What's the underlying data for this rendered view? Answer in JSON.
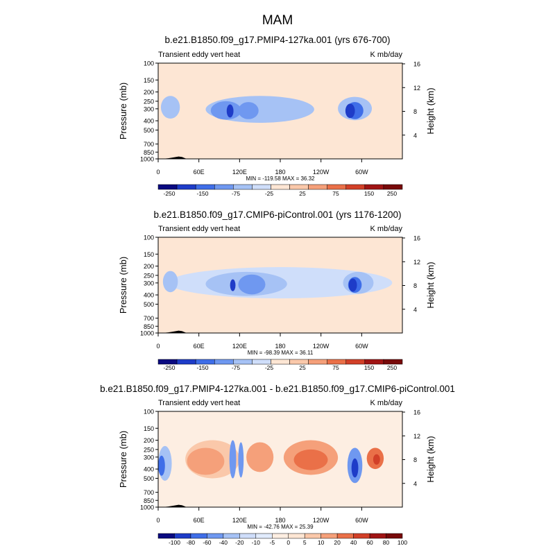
{
  "figure": {
    "title": "MAM"
  },
  "palettes": {
    "abs": [
      "#0a0a80",
      "#1e3cc8",
      "#3f6ee8",
      "#6f98f0",
      "#a6c2f5",
      "#cfdefa",
      "#fde6d4",
      "#fac8aa",
      "#f5a07a",
      "#ea7048",
      "#d24028",
      "#a01414",
      "#780a0a"
    ],
    "diff": [
      "#0a0a80",
      "#1e3cc8",
      "#3f6ee8",
      "#6f98f0",
      "#a6c2f5",
      "#cfdefa",
      "#e1ebfc",
      "#fdeee2",
      "#fde6d4",
      "#fac8aa",
      "#f5a07a",
      "#ea7048",
      "#d24028",
      "#a01414",
      "#780a0a"
    ]
  },
  "chart_data": [
    {
      "type": "heatmap",
      "title": "b.e21.B1850.f09_g17.PMIP4-127ka.001 (yrs 676-700)",
      "left_label": "Transient eddy vert heat",
      "units": "K mb/day",
      "ylabel": "Pressure (mb)",
      "y2label": "Height (km)",
      "xticks": [
        "0",
        "60E",
        "120E",
        "180",
        "120W",
        "60W"
      ],
      "yticks": [
        "100",
        "150",
        "200",
        "250",
        "300",
        "400",
        "500",
        "700",
        "850",
        "1000"
      ],
      "y2ticks": [
        "16",
        "12",
        "8",
        "4"
      ],
      "stats": "MIN = -119.58  MAX =  36.32",
      "colorbar_levels": [
        "-250",
        "-150",
        "-75",
        "-25",
        "25",
        "75",
        "150",
        "250"
      ],
      "palette": "abs",
      "x_range": [
        0,
        360
      ],
      "p_range": [
        1000,
        100
      ],
      "background_level": 6,
      "blobs": [
        {
          "lon": 150,
          "p": 320,
          "wlon": 160,
          "wp": 200,
          "level": 4
        },
        {
          "lon": 18,
          "p": 300,
          "wlon": 28,
          "wp": 160,
          "level": 4
        },
        {
          "lon": 290,
          "p": 310,
          "wlon": 50,
          "wp": 170,
          "level": 4
        },
        {
          "lon": 100,
          "p": 320,
          "wlon": 45,
          "wp": 140,
          "level": 3
        },
        {
          "lon": 133,
          "p": 320,
          "wlon": 30,
          "wp": 130,
          "level": 3
        },
        {
          "lon": 290,
          "p": 320,
          "wlon": 25,
          "wp": 130,
          "level": 2
        },
        {
          "lon": 106,
          "p": 320,
          "wlon": 10,
          "wp": 100,
          "level": 1
        },
        {
          "lon": 283,
          "p": 320,
          "wlon": 14,
          "wp": 110,
          "level": 1
        }
      ],
      "topography": [
        [
          5,
          1000
        ],
        [
          15,
          985
        ],
        [
          25,
          960
        ],
        [
          30,
          945
        ],
        [
          35,
          955
        ],
        [
          42,
          1000
        ]
      ]
    },
    {
      "type": "heatmap",
      "title": "b.e21.B1850.f09_g17.CMIP6-piControl.001 (yrs 1176-1200)",
      "left_label": "Transient eddy vert heat",
      "units": "K mb/day",
      "ylabel": "Pressure (mb)",
      "y2label": "Height (km)",
      "xticks": [
        "0",
        "60E",
        "120E",
        "180",
        "120W",
        "60W"
      ],
      "yticks": [
        "100",
        "150",
        "200",
        "250",
        "300",
        "400",
        "500",
        "700",
        "850",
        "1000"
      ],
      "y2ticks": [
        "16",
        "12",
        "8",
        "4"
      ],
      "stats": "MIN = -98.39  MAX =  36.11",
      "colorbar_levels": [
        "-250",
        "-150",
        "-75",
        "-25",
        "25",
        "75",
        "150",
        "250"
      ],
      "palette": "abs",
      "x_range": [
        0,
        360
      ],
      "p_range": [
        1000,
        100
      ],
      "background_level": 6,
      "blobs": [
        {
          "lon": 180,
          "p": 320,
          "wlon": 330,
          "wp": 230,
          "level": 5
        },
        {
          "lon": 130,
          "p": 320,
          "wlon": 120,
          "wp": 180,
          "level": 4
        },
        {
          "lon": 18,
          "p": 300,
          "wlon": 22,
          "wp": 150,
          "level": 4
        },
        {
          "lon": 295,
          "p": 310,
          "wlon": 45,
          "wp": 160,
          "level": 4
        },
        {
          "lon": 138,
          "p": 320,
          "wlon": 40,
          "wp": 150,
          "level": 3
        },
        {
          "lon": 290,
          "p": 320,
          "wlon": 20,
          "wp": 120,
          "level": 2
        },
        {
          "lon": 110,
          "p": 320,
          "wlon": 8,
          "wp": 90,
          "level": 1
        },
        {
          "lon": 287,
          "p": 320,
          "wlon": 12,
          "wp": 100,
          "level": 1
        }
      ],
      "topography": [
        [
          5,
          1000
        ],
        [
          15,
          985
        ],
        [
          25,
          960
        ],
        [
          30,
          945
        ],
        [
          35,
          955
        ],
        [
          42,
          1000
        ]
      ]
    },
    {
      "type": "heatmap",
      "title": "b.e21.B1850.f09_g17.PMIP4-127ka.001 - b.e21.B1850.f09_g17.CMIP6-piControl.001",
      "left_label": "Transient eddy vert heat",
      "units": "K mb/day",
      "ylabel": "Pressure (mb)",
      "y2label": "Height (km)",
      "xticks": [
        "0",
        "60E",
        "120E",
        "180",
        "120W",
        "60W"
      ],
      "yticks": [
        "100",
        "150",
        "200",
        "250",
        "300",
        "400",
        "500",
        "700",
        "850",
        "1000"
      ],
      "y2ticks": [
        "16",
        "12",
        "8",
        "4"
      ],
      "stats": "MIN = -42.76  MAX =  25.39",
      "colorbar_levels": [
        "-100",
        "-80",
        "-60",
        "-40",
        "-20",
        "-10",
        "-5",
        "0",
        "5",
        "10",
        "20",
        "40",
        "60",
        "80",
        "100"
      ],
      "palette": "diff",
      "x_range": [
        0,
        360
      ],
      "p_range": [
        1000,
        100
      ],
      "background_level": 7,
      "blobs": [
        {
          "lon": 80,
          "p": 350,
          "wlon": 80,
          "wp": 300,
          "level": 9
        },
        {
          "lon": 70,
          "p": 350,
          "wlon": 55,
          "wp": 220,
          "level": 10
        },
        {
          "lon": 150,
          "p": 320,
          "wlon": 40,
          "wp": 220,
          "level": 10
        },
        {
          "lon": 225,
          "p": 330,
          "wlon": 80,
          "wp": 260,
          "level": 10
        },
        {
          "lon": 225,
          "p": 330,
          "wlon": 50,
          "wp": 160,
          "level": 11
        },
        {
          "lon": 320,
          "p": 320,
          "wlon": 25,
          "wp": 160,
          "level": 11
        },
        {
          "lon": 322,
          "p": 320,
          "wlon": 10,
          "wp": 80,
          "level": 12
        },
        {
          "lon": 10,
          "p": 380,
          "wlon": 20,
          "wp": 300,
          "level": 4
        },
        {
          "lon": 5,
          "p": 380,
          "wlon": 10,
          "wp": 180,
          "level": 2
        },
        {
          "lon": 290,
          "p": 400,
          "wlon": 22,
          "wp": 320,
          "level": 3
        },
        {
          "lon": 290,
          "p": 400,
          "wlon": 10,
          "wp": 180,
          "level": 1
        },
        {
          "lon": 110,
          "p": 350,
          "wlon": 10,
          "wp": 300,
          "level": 3
        },
        {
          "lon": 122,
          "p": 350,
          "wlon": 8,
          "wp": 280,
          "level": 3
        }
      ],
      "topography": [
        [
          5,
          1000
        ],
        [
          15,
          985
        ],
        [
          25,
          960
        ],
        [
          30,
          945
        ],
        [
          35,
          955
        ],
        [
          42,
          1000
        ]
      ]
    }
  ]
}
